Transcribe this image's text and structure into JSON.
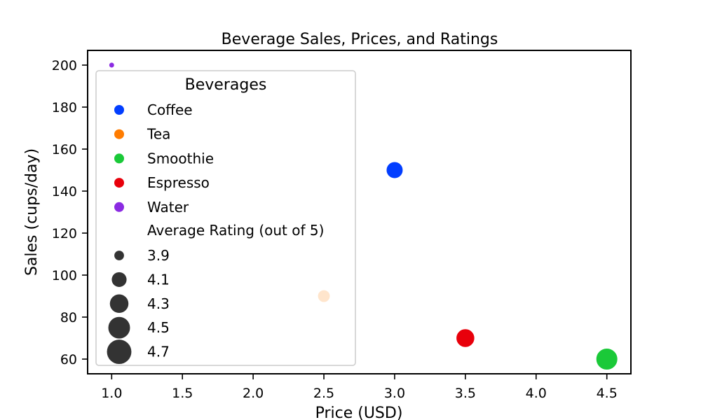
{
  "chart_data": {
    "type": "scatter",
    "title": "Beverage Sales, Prices, and Ratings",
    "xlabel": "Price (USD)",
    "ylabel": "Sales (cups/day)",
    "xlim": [
      0.83,
      4.67
    ],
    "ylim": [
      53,
      207
    ],
    "xticks": [
      1.0,
      1.5,
      2.0,
      2.5,
      3.0,
      3.5,
      4.0,
      4.5
    ],
    "xtick_labels": [
      "1.0",
      "1.5",
      "2.0",
      "2.5",
      "3.0",
      "3.5",
      "4.0",
      "4.5"
    ],
    "yticks": [
      60,
      80,
      100,
      120,
      140,
      160,
      180,
      200
    ],
    "ytick_labels": [
      "60",
      "80",
      "100",
      "120",
      "140",
      "160",
      "180",
      "200"
    ],
    "grid": false,
    "legend_placement": "upper-left",
    "legend": {
      "title": "Beverages",
      "series_entries": [
        {
          "label": "Coffee",
          "color": "#023eff"
        },
        {
          "label": "Tea",
          "color": "#ff7c00"
        },
        {
          "label": "Smoothie",
          "color": "#1ac938"
        },
        {
          "label": "Espresso",
          "color": "#e8000b"
        },
        {
          "label": "Water",
          "color": "#8b2be2"
        }
      ],
      "size_title": "Average Rating (out of 5)",
      "size_entries": [
        {
          "label": "3.9",
          "rating": 3.9
        },
        {
          "label": "4.1",
          "rating": 4.1
        },
        {
          "label": "4.3",
          "rating": 4.3
        },
        {
          "label": "4.5",
          "rating": 4.5
        },
        {
          "label": "4.7",
          "rating": 4.7
        }
      ],
      "size_entry_color": "#333333"
    },
    "series": [
      {
        "name": "Coffee",
        "color": "#023eff",
        "points": [
          {
            "x": 3.0,
            "y": 150,
            "rating": 4.2
          }
        ]
      },
      {
        "name": "Tea",
        "color": "#ff7c00",
        "points": [
          {
            "x": 2.5,
            "y": 90,
            "rating": 4.0
          }
        ]
      },
      {
        "name": "Smoothie",
        "color": "#1ac938",
        "points": [
          {
            "x": 4.5,
            "y": 60,
            "rating": 4.5
          }
        ]
      },
      {
        "name": "Espresso",
        "color": "#e8000b",
        "points": [
          {
            "x": 3.5,
            "y": 70,
            "rating": 4.3
          }
        ]
      },
      {
        "name": "Water",
        "color": "#8b2be2",
        "points": [
          {
            "x": 1.0,
            "y": 200,
            "rating": 3.8
          }
        ]
      }
    ]
  }
}
